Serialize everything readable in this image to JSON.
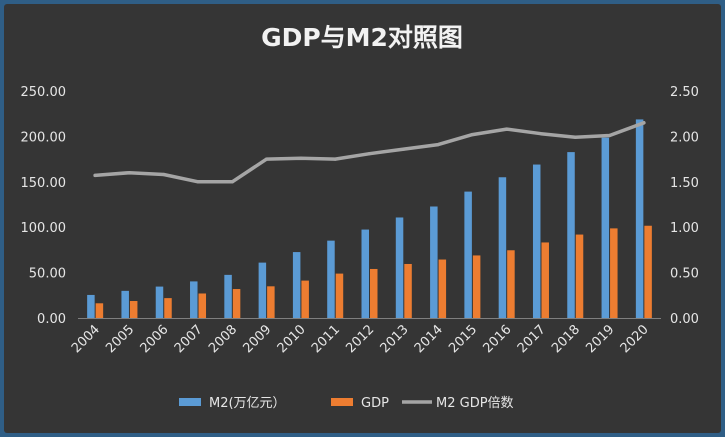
{
  "chart_data": {
    "type": "bar",
    "title": "GDP与M2对照图",
    "categories": [
      "2004",
      "2005",
      "2006",
      "2007",
      "2008",
      "2009",
      "2010",
      "2011",
      "2012",
      "2013",
      "2014",
      "2015",
      "2016",
      "2017",
      "2018",
      "2019",
      "2020"
    ],
    "series": [
      {
        "name": "M2(万亿元）",
        "type": "bar",
        "axis": "left",
        "color": "#5b9bd5",
        "values": [
          25.4,
          29.9,
          34.6,
          40.3,
          47.5,
          61.0,
          72.6,
          85.2,
          97.4,
          110.7,
          122.8,
          139.2,
          155.0,
          169.0,
          182.7,
          198.6,
          218.7
        ]
      },
      {
        "name": "GDP",
        "type": "bar",
        "axis": "left",
        "color": "#ed7d31",
        "values": [
          16.2,
          18.7,
          21.9,
          27.0,
          31.9,
          34.9,
          41.2,
          48.9,
          54.0,
          59.5,
          64.4,
          68.9,
          74.6,
          83.2,
          91.9,
          98.7,
          101.6
        ]
      },
      {
        "name": "M2 GDP倍数",
        "type": "line",
        "axis": "right",
        "color": "#a5a5a5",
        "values": [
          1.57,
          1.6,
          1.58,
          1.5,
          1.5,
          1.75,
          1.76,
          1.75,
          1.81,
          1.86,
          1.91,
          2.02,
          2.08,
          2.03,
          1.99,
          2.01,
          2.15
        ]
      }
    ],
    "y_left": {
      "min": 0,
      "max": 250,
      "step": 50,
      "ticks": [
        "0.00",
        "50.00",
        "100.00",
        "150.00",
        "200.00",
        "250.00"
      ]
    },
    "y_right": {
      "min": 0,
      "max": 2.5,
      "step": 0.5,
      "ticks": [
        "0.00",
        "0.50",
        "1.00",
        "1.50",
        "2.00",
        "2.50"
      ]
    },
    "grid": false,
    "legend_position": "bottom"
  }
}
